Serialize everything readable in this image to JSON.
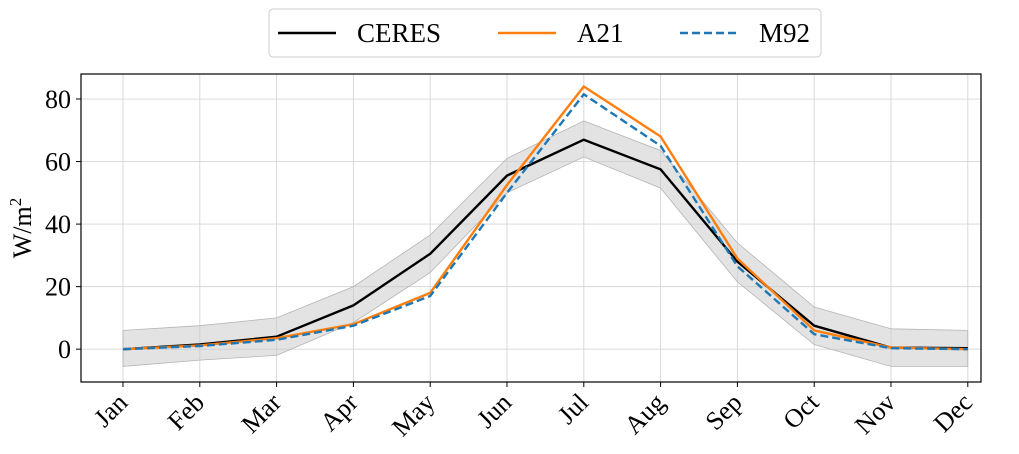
{
  "chart_data": {
    "type": "line",
    "categories": [
      "Jan",
      "Feb",
      "Mar",
      "Apr",
      "May",
      "Jun",
      "Jul",
      "Aug",
      "Sep",
      "Oct",
      "Nov",
      "Dec"
    ],
    "ylabel_base": "W/m",
    "ylabel_sup": "2",
    "ylim": [
      -10.5,
      88
    ],
    "yticks": [
      0,
      20,
      40,
      60,
      80
    ],
    "grid": true,
    "legend_position": "top-center",
    "band": {
      "lower": [
        -5.5,
        -3.5,
        -2.0,
        8.5,
        24.5,
        50.0,
        61.5,
        51.5,
        21.5,
        1.5,
        -5.5,
        -5.5
      ],
      "upper": [
        6.0,
        7.5,
        10.0,
        20.0,
        36.5,
        61.0,
        73.0,
        63.5,
        34.0,
        13.5,
        6.5,
        6.0
      ],
      "color": "#c8c8c8"
    },
    "series": [
      {
        "name": "CERES",
        "color": "#000000",
        "dash": "solid",
        "values": [
          0.0,
          1.5,
          4.0,
          14.0,
          30.5,
          55.5,
          67.0,
          57.5,
          28.0,
          7.5,
          0.5,
          0.3
        ]
      },
      {
        "name": "A21",
        "color": "#ff7f0e",
        "dash": "solid",
        "values": [
          0.0,
          1.2,
          3.5,
          8.0,
          18.0,
          52.5,
          84.0,
          68.0,
          29.0,
          6.0,
          0.5,
          0.0
        ]
      },
      {
        "name": "M92",
        "color": "#1f77b4",
        "dash": "dashed",
        "values": [
          0.0,
          1.0,
          3.0,
          7.5,
          17.0,
          50.0,
          81.5,
          65.0,
          26.5,
          4.8,
          0.3,
          0.0
        ]
      }
    ]
  }
}
